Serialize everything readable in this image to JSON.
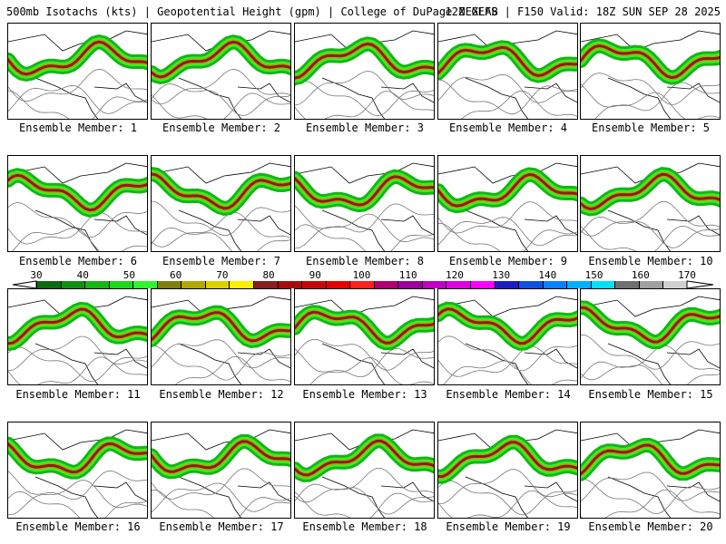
{
  "header": {
    "title_left": "500mb Isotachs (kts) | Geopotential Height (gpm) | College of DuPage NEXLAB",
    "title_right": "12Z GEFS | F150 Valid: 18Z SUN SEP 28 2025"
  },
  "colorbar": {
    "ticks": [
      "30",
      "40",
      "50",
      "60",
      "70",
      "80",
      "90",
      "100",
      "110",
      "120",
      "130",
      "140",
      "150",
      "160",
      "170"
    ],
    "colors": [
      "#0b6b10",
      "#108f10",
      "#16b516",
      "#1fd61f",
      "#2ef52e",
      "#7f7f10",
      "#b3a800",
      "#ddd000",
      "#ffee00",
      "#8a1d1d",
      "#a80d0d",
      "#c80808",
      "#e80000",
      "#ff2020",
      "#b00070",
      "#9a009a",
      "#c000c0",
      "#de00de",
      "#ff00ff",
      "#1d1dbf",
      "#1050e0",
      "#0a80ff",
      "#00b0ff",
      "#00e0ff",
      "#707070",
      "#a0a0a0",
      "#d0d0d0"
    ]
  },
  "members": [
    {
      "caption": "Ensemble Member: 1"
    },
    {
      "caption": "Ensemble Member: 2"
    },
    {
      "caption": "Ensemble Member: 3"
    },
    {
      "caption": "Ensemble Member: 4"
    },
    {
      "caption": "Ensemble Member: 5"
    },
    {
      "caption": "Ensemble Member: 6"
    },
    {
      "caption": "Ensemble Member: 7"
    },
    {
      "caption": "Ensemble Member: 8"
    },
    {
      "caption": "Ensemble Member: 9"
    },
    {
      "caption": "Ensemble Member: 10"
    },
    {
      "caption": "Ensemble Member: 11"
    },
    {
      "caption": "Ensemble Member: 12"
    },
    {
      "caption": "Ensemble Member: 13"
    },
    {
      "caption": "Ensemble Member: 14"
    },
    {
      "caption": "Ensemble Member: 15"
    },
    {
      "caption": "Ensemble Member: 16"
    },
    {
      "caption": "Ensemble Member: 17"
    },
    {
      "caption": "Ensemble Member: 18"
    },
    {
      "caption": "Ensemble Member: 19"
    },
    {
      "caption": "Ensemble Member: 20"
    }
  ]
}
